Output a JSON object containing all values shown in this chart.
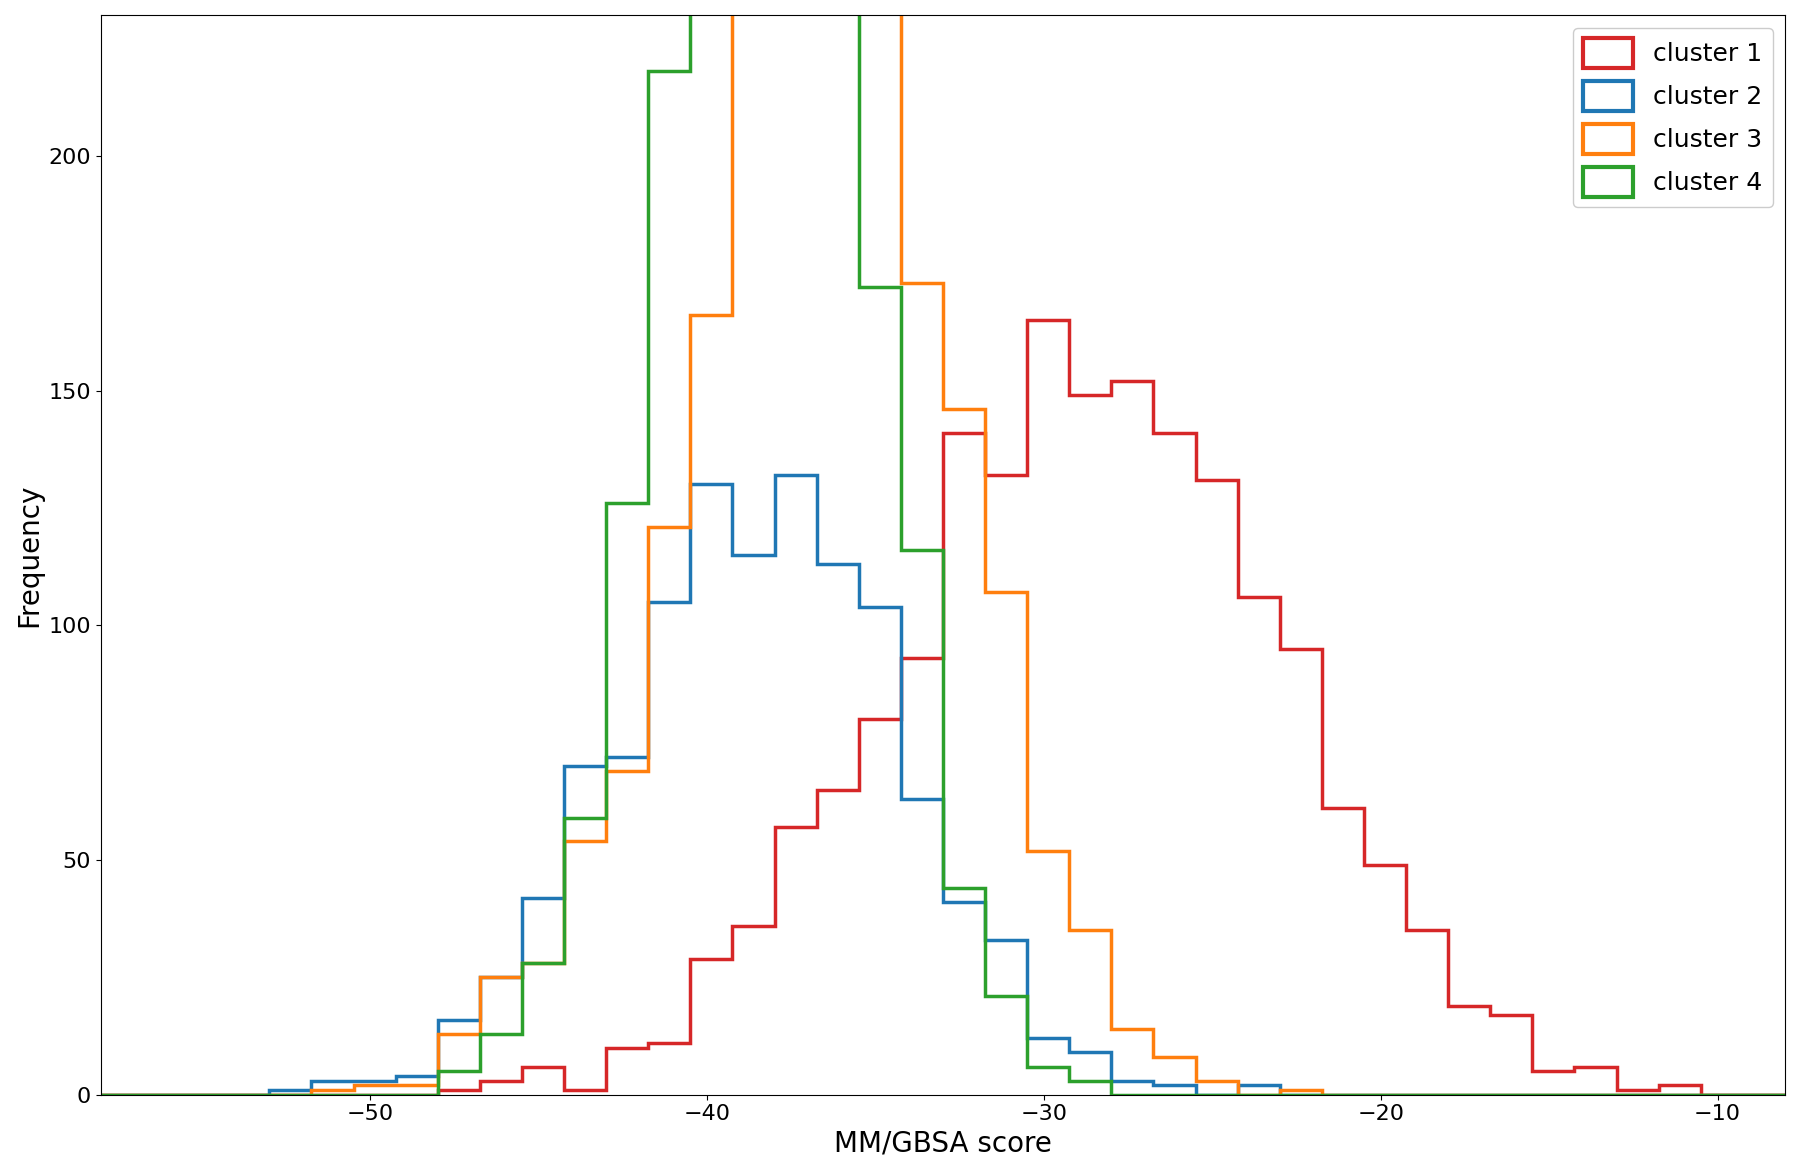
{
  "clusters": {
    "cluster 1": {
      "mean": -28.5,
      "std": 5.8,
      "n": 1800,
      "color": "#d62728"
    },
    "cluster 2": {
      "mean": -38.5,
      "std": 4.2,
      "n": 1100,
      "color": "#1f77b4"
    },
    "cluster 3": {
      "mean": -36.5,
      "std": 4.0,
      "n": 2000,
      "color": "#ff7f0e"
    },
    "cluster 4": {
      "mean": -38.2,
      "std": 3.0,
      "n": 2100,
      "color": "#2ca02c"
    }
  },
  "bins": 40,
  "xlabel": "MM/GBSA score",
  "ylabel": "Frequency",
  "xlim": [
    -58,
    -8
  ],
  "ylim": [
    0,
    230
  ],
  "legend_labels": [
    "cluster 1",
    "cluster 2",
    "cluster 3",
    "cluster 4"
  ],
  "legend_colors": [
    "#d62728",
    "#1f77b4",
    "#ff7f0e",
    "#2ca02c"
  ],
  "linewidth": 2.5,
  "figsize": [
    18.0,
    11.73
  ],
  "dpi": 100,
  "xlabel_fontsize": 20,
  "ylabel_fontsize": 20,
  "tick_fontsize": 16,
  "legend_fontsize": 18,
  "seed": 7
}
